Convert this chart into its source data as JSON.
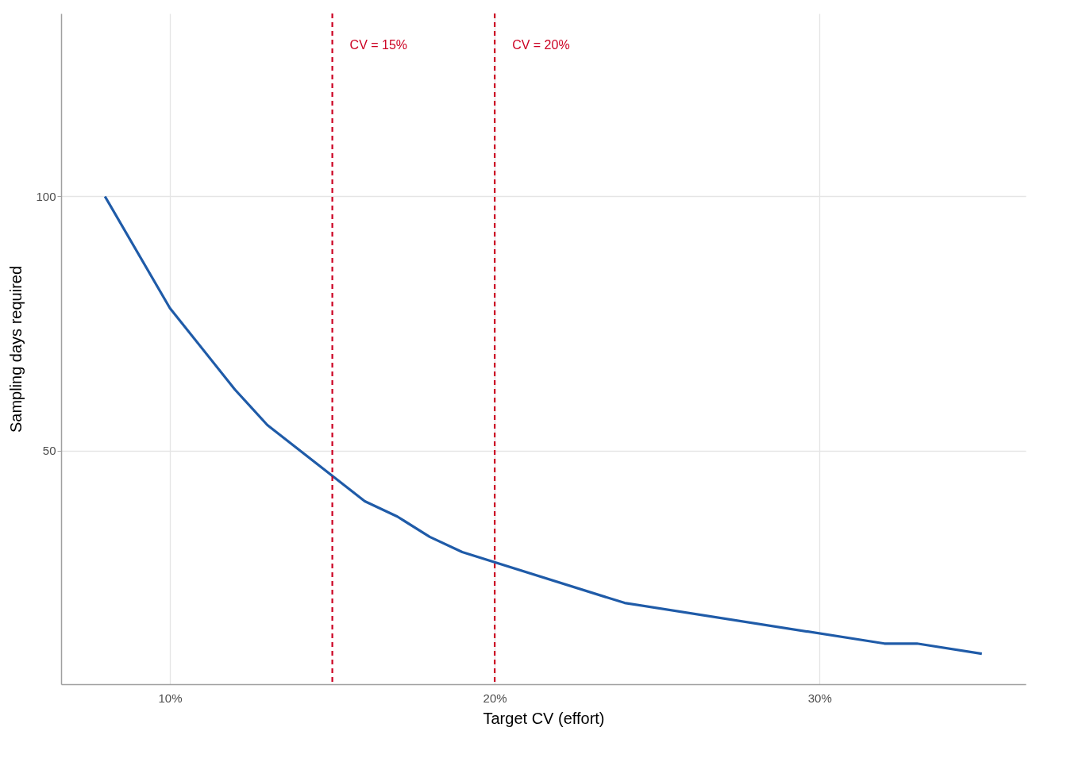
{
  "chart_data": {
    "type": "line",
    "xlabel": "Target CV (effort)",
    "ylabel": "Sampling days required",
    "x": [
      8,
      10,
      12,
      13,
      16,
      17,
      18,
      19,
      24,
      32,
      33,
      35
    ],
    "series": [
      {
        "color": "#1f5ba8",
        "values": [
          100,
          78,
          62,
          55,
          40,
          37,
          33,
          30,
          20,
          12,
          12,
          10
        ]
      }
    ],
    "xlim": [
      6.65,
      36.35
    ],
    "ylim": [
      4,
      136
    ],
    "xticks": [
      {
        "value": 10,
        "label": "10%"
      },
      {
        "value": 20,
        "label": "20%"
      },
      {
        "value": 30,
        "label": "30%"
      }
    ],
    "yticks": [
      50,
      100
    ],
    "grid": true,
    "line_style": "solid",
    "marker": "none",
    "ref_lines": [
      {
        "axis": "x",
        "value": 15,
        "label": "CV = 15%",
        "color": "#cc0022",
        "line_style": "dashed"
      },
      {
        "axis": "x",
        "value": 20,
        "label": "CV = 20%",
        "color": "#cc0022",
        "line_style": "dashed"
      }
    ]
  }
}
